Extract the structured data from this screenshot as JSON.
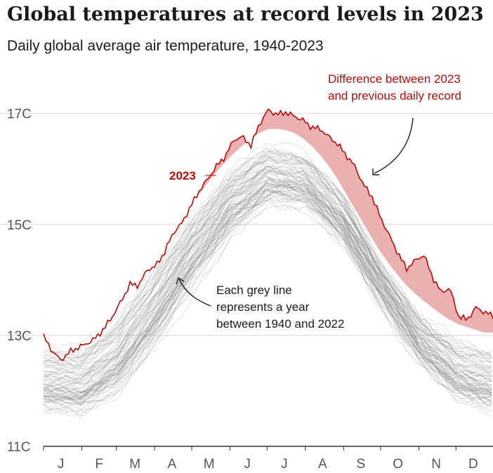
{
  "title": "Global temperatures at record levels in 2023",
  "subtitle": "Daily global average air temperature, 1940-2023",
  "colors": {
    "record_line": "#b80c09",
    "record_gap_fill": "#e8a3a3",
    "grey_lines": "#7a7a7a",
    "gridline": "#d9d9d9",
    "axis": "#333333",
    "text": "#1a1a1a",
    "tick_text": "#555555"
  },
  "chart_data": {
    "type": "line",
    "title": "Global temperatures at record levels in 2023",
    "subtitle": "Daily global average air temperature, 1940-2023",
    "xlabel": "",
    "ylabel": "",
    "x_unit": "day of year",
    "ylim": [
      11,
      17.4
    ],
    "y_ticks": [
      {
        "value": 11,
        "label": "11C"
      },
      {
        "value": 13,
        "label": "13C"
      },
      {
        "value": 15,
        "label": "15C"
      },
      {
        "value": 17,
        "label": "17C"
      }
    ],
    "x_ticks": [
      {
        "day": 15,
        "label": "J"
      },
      {
        "day": 46,
        "label": "F"
      },
      {
        "day": 75,
        "label": "M"
      },
      {
        "day": 105,
        "label": "A"
      },
      {
        "day": 135,
        "label": "M"
      },
      {
        "day": 166,
        "label": "J"
      },
      {
        "day": 196,
        "label": "J"
      },
      {
        "day": 227,
        "label": "A"
      },
      {
        "day": 258,
        "label": "S"
      },
      {
        "day": 288,
        "label": "O"
      },
      {
        "day": 319,
        "label": "N"
      },
      {
        "day": 349,
        "label": "D"
      }
    ],
    "grid": "horizontal",
    "years_background": "1940-2022",
    "series_2023": {
      "name": "2023",
      "x": [
        1,
        8,
        15,
        22,
        29,
        36,
        43,
        50,
        57,
        64,
        71,
        78,
        85,
        92,
        99,
        106,
        113,
        120,
        127,
        134,
        141,
        148,
        155,
        162,
        169,
        176,
        183,
        190,
        197,
        204,
        211,
        218,
        225,
        232,
        239,
        246,
        253,
        260,
        267,
        274,
        281,
        288,
        295,
        302,
        309,
        316,
        323,
        330,
        337,
        344,
        351,
        358,
        365
      ],
      "y": [
        12.98,
        12.72,
        12.55,
        12.7,
        12.78,
        12.85,
        12.95,
        13.12,
        13.35,
        13.62,
        13.92,
        13.9,
        14.18,
        14.25,
        14.5,
        14.85,
        15.02,
        15.32,
        15.6,
        15.82,
        16.05,
        16.22,
        16.52,
        16.58,
        16.42,
        16.82,
        17.06,
        16.98,
        17.02,
        16.95,
        16.88,
        16.75,
        16.72,
        16.58,
        16.45,
        16.25,
        16.05,
        15.72,
        15.5,
        15.12,
        14.8,
        14.48,
        14.2,
        14.35,
        14.45,
        14.05,
        13.78,
        13.85,
        13.35,
        13.28,
        13.5,
        13.42,
        13.35
      ]
    },
    "previous_daily_record": {
      "x": [
        1,
        8,
        15,
        22,
        29,
        36,
        43,
        50,
        57,
        64,
        71,
        78,
        85,
        92,
        99,
        106,
        113,
        120,
        127,
        134,
        141,
        148,
        155,
        162,
        169,
        176,
        183,
        190,
        197,
        204,
        211,
        218,
        225,
        232,
        239,
        246,
        253,
        260,
        267,
        274,
        281,
        288,
        295,
        302,
        309,
        316,
        323,
        330,
        337,
        344,
        351,
        358,
        365
      ],
      "y": [
        13.1,
        13.08,
        13.08,
        13.12,
        13.2,
        13.3,
        13.4,
        13.55,
        13.72,
        13.92,
        14.08,
        14.22,
        14.38,
        14.55,
        14.75,
        14.95,
        15.15,
        15.35,
        15.55,
        15.75,
        15.95,
        16.12,
        16.28,
        16.42,
        16.55,
        16.65,
        16.72,
        16.72,
        16.7,
        16.65,
        16.55,
        16.42,
        16.25,
        16.05,
        15.82,
        15.55,
        15.28,
        15.02,
        14.75,
        14.5,
        14.28,
        14.08,
        13.9,
        13.75,
        13.62,
        13.5,
        13.38,
        13.28,
        13.2,
        13.15,
        13.1,
        13.05,
        13.05
      ]
    },
    "background_envelope": {
      "x": [
        1,
        31,
        60,
        91,
        121,
        152,
        182,
        213,
        244,
        274,
        305,
        335,
        365
      ],
      "upper": [
        13.1,
        13.15,
        13.72,
        14.55,
        15.45,
        16.28,
        16.72,
        16.55,
        15.82,
        14.5,
        13.62,
        13.2,
        13.05
      ],
      "median": [
        12.1,
        12.05,
        12.5,
        13.45,
        14.5,
        15.35,
        15.85,
        15.75,
        15.05,
        13.95,
        12.95,
        12.3,
        12.05
      ],
      "lower": [
        11.5,
        11.4,
        11.75,
        12.55,
        13.55,
        14.55,
        15.15,
        15.15,
        14.45,
        13.3,
        12.25,
        11.65,
        11.5
      ]
    },
    "annotations": {
      "label_2023": "2023",
      "difference": [
        "Difference between 2023",
        "and previous daily record"
      ],
      "grey_lines": [
        "Each grey line",
        "represents a year",
        "between 1940 and 2022"
      ]
    }
  }
}
